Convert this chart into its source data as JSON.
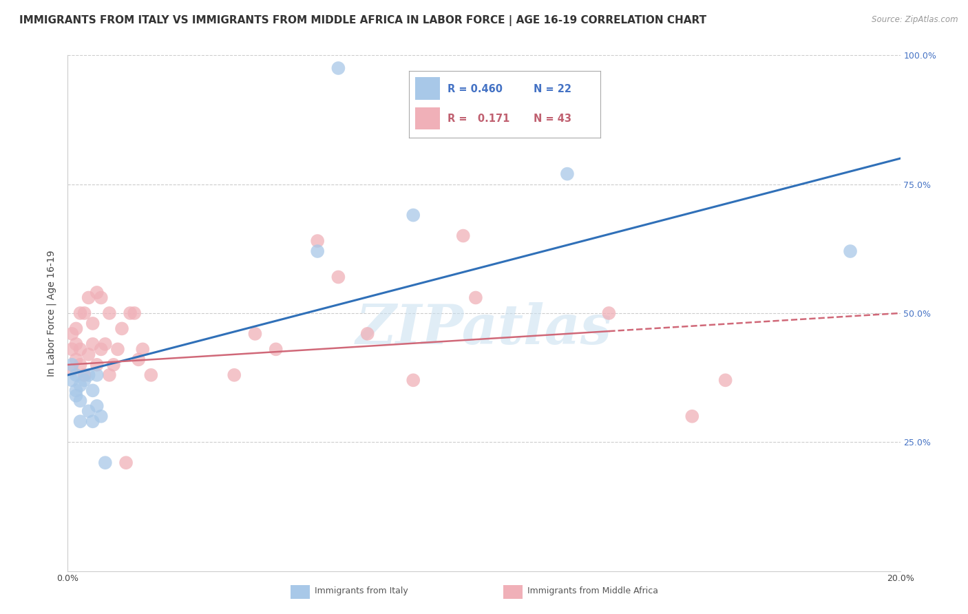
{
  "title": "IMMIGRANTS FROM ITALY VS IMMIGRANTS FROM MIDDLE AFRICA IN LABOR FORCE | AGE 16-19 CORRELATION CHART",
  "source": "Source: ZipAtlas.com",
  "ylabel": "In Labor Force | Age 16-19",
  "xlim": [
    0.0,
    0.2
  ],
  "ylim": [
    0.0,
    1.0
  ],
  "italy_color": "#a8c8e8",
  "middle_africa_color": "#f0b0b8",
  "italy_line_color": "#3070b8",
  "middle_africa_line_color": "#d06878",
  "italy_scatter_x": [
    0.001,
    0.001,
    0.002,
    0.002,
    0.002,
    0.003,
    0.003,
    0.003,
    0.004,
    0.005,
    0.005,
    0.006,
    0.006,
    0.007,
    0.007,
    0.008,
    0.009,
    0.06,
    0.065,
    0.083,
    0.12,
    0.188
  ],
  "italy_scatter_y": [
    0.37,
    0.4,
    0.35,
    0.38,
    0.34,
    0.33,
    0.36,
    0.29,
    0.37,
    0.31,
    0.38,
    0.35,
    0.29,
    0.32,
    0.38,
    0.3,
    0.21,
    0.62,
    0.975,
    0.69,
    0.77,
    0.62
  ],
  "middle_africa_scatter_x": [
    0.001,
    0.001,
    0.001,
    0.002,
    0.002,
    0.002,
    0.003,
    0.003,
    0.003,
    0.004,
    0.004,
    0.005,
    0.005,
    0.006,
    0.006,
    0.007,
    0.007,
    0.008,
    0.008,
    0.009,
    0.01,
    0.01,
    0.011,
    0.012,
    0.013,
    0.014,
    0.015,
    0.016,
    0.017,
    0.018,
    0.02,
    0.04,
    0.045,
    0.05,
    0.06,
    0.065,
    0.072,
    0.083,
    0.095,
    0.098,
    0.13,
    0.15,
    0.158
  ],
  "middle_africa_scatter_y": [
    0.39,
    0.43,
    0.46,
    0.41,
    0.44,
    0.47,
    0.4,
    0.43,
    0.5,
    0.38,
    0.5,
    0.42,
    0.53,
    0.44,
    0.48,
    0.4,
    0.54,
    0.43,
    0.53,
    0.44,
    0.38,
    0.5,
    0.4,
    0.43,
    0.47,
    0.21,
    0.5,
    0.5,
    0.41,
    0.43,
    0.38,
    0.38,
    0.46,
    0.43,
    0.64,
    0.57,
    0.46,
    0.37,
    0.65,
    0.53,
    0.5,
    0.3,
    0.37
  ],
  "italy_line_x0": 0.0,
  "italy_line_y0": 0.38,
  "italy_line_x1": 0.2,
  "italy_line_y1": 0.8,
  "africa_line_x0": 0.0,
  "africa_line_y0": 0.4,
  "africa_line_x1": 0.2,
  "africa_line_y1": 0.5,
  "watermark": "ZIPatlas",
  "title_fontsize": 11,
  "axis_label_fontsize": 10,
  "tick_fontsize": 9,
  "legend_fontsize": 11,
  "bottom_legend_italy": "Immigrants from Italy",
  "bottom_legend_africa": "Immigrants from Middle Africa"
}
